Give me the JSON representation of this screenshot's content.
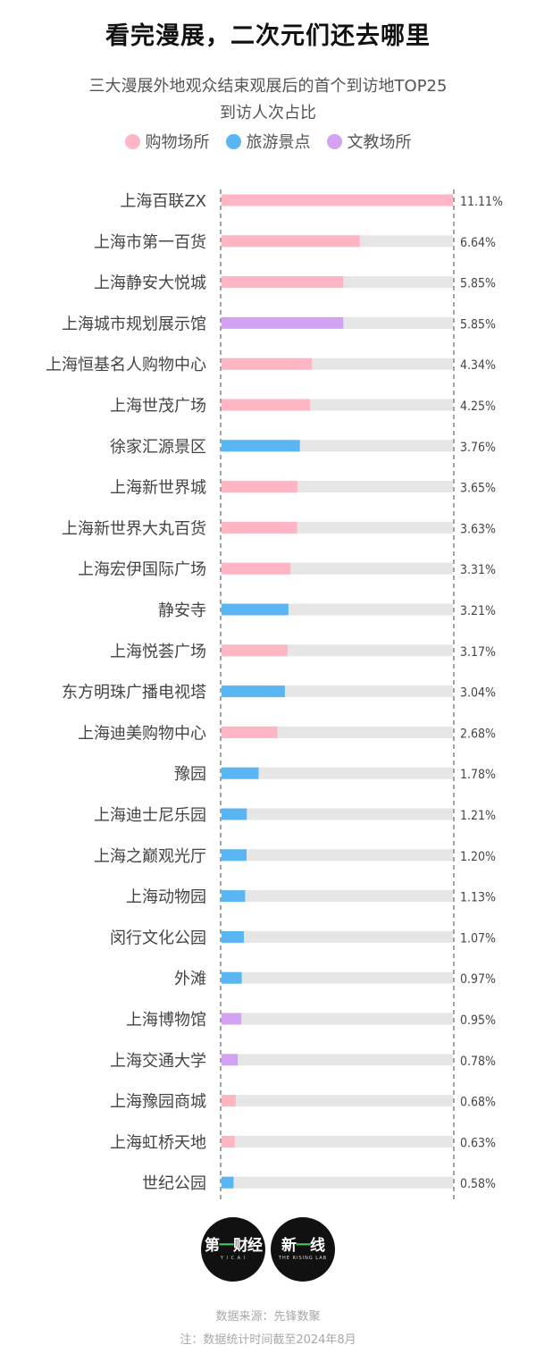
{
  "header": {
    "title": "看完漫展，二次元们还去哪里",
    "subtitle_line1": "三大漫展外地观众结束观展后的首个到访地TOP25",
    "subtitle_line2": "到访人次占比"
  },
  "legend": [
    {
      "label": "购物场所",
      "color": "#ffb6c4"
    },
    {
      "label": "旅游景点",
      "color": "#5ab6f2"
    },
    {
      "label": "文教场所",
      "color": "#d4a2f2"
    }
  ],
  "chart_data": {
    "type": "bar",
    "orientation": "horizontal",
    "categories": [
      "上海百联ZX",
      "上海市第一百货",
      "上海静安大悦城",
      "上海城市规划展示馆",
      "上海恒基名人购物中心",
      "上海世茂广场",
      "徐家汇源景区",
      "上海新世界城",
      "上海新世界大丸百货",
      "上海宏伊国际广场",
      "静安寺",
      "上海悦荟广场",
      "东方明珠广播电视塔",
      "上海迪美购物中心",
      "豫园",
      "上海迪士尼乐园",
      "上海之巅观光厅",
      "上海动物园",
      "闵行文化公园",
      "外滩",
      "上海博物馆",
      "上海交通大学",
      "上海豫园商城",
      "上海虹桥天地",
      "世纪公园"
    ],
    "values": [
      11.11,
      6.64,
      5.85,
      5.85,
      4.34,
      4.25,
      3.76,
      3.65,
      3.63,
      3.31,
      3.21,
      3.17,
      3.04,
      2.68,
      1.78,
      1.21,
      1.2,
      1.13,
      1.07,
      0.97,
      0.95,
      0.78,
      0.68,
      0.63,
      0.58
    ],
    "value_labels": [
      "11.11%",
      "6.64%",
      "5.85%",
      "5.85%",
      "4.34%",
      "4.25%",
      "3.76%",
      "3.65%",
      "3.63%",
      "3.31%",
      "3.21%",
      "3.17%",
      "3.04%",
      "2.68%",
      "1.78%",
      "1.21%",
      "1.20%",
      "1.13%",
      "1.07%",
      "0.97%",
      "0.95%",
      "0.78%",
      "0.68%",
      "0.63%",
      "0.58%"
    ],
    "group": [
      "购物场所",
      "购物场所",
      "购物场所",
      "文教场所",
      "购物场所",
      "购物场所",
      "旅游景点",
      "购物场所",
      "购物场所",
      "购物场所",
      "旅游景点",
      "购物场所",
      "旅游景点",
      "购物场所",
      "旅游景点",
      "旅游景点",
      "旅游景点",
      "旅游景点",
      "旅游景点",
      "旅游景点",
      "文教场所",
      "文教场所",
      "购物场所",
      "购物场所",
      "旅游景点"
    ],
    "xlim": [
      0,
      11.11
    ],
    "track_color": "#e6e6e6",
    "grid": false,
    "legend_position": "top-center"
  },
  "logos": [
    {
      "text_a": "第",
      "text_accent": "一",
      "text_b": "财经",
      "subtext": "Y I C A I"
    },
    {
      "text_a": "新",
      "text_accent": "一",
      "text_b": "线",
      "subtext": "THE RISING LAB"
    }
  ],
  "footer": {
    "source": "数据来源：先锋数聚",
    "note": "注：数据统计时间截至2024年8月"
  }
}
